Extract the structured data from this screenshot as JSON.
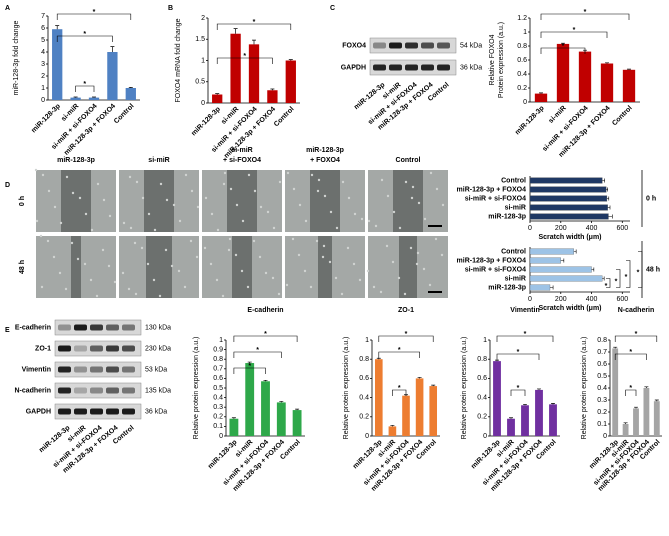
{
  "panels": [
    "A",
    "B",
    "C",
    "D",
    "E"
  ],
  "blots": {
    "C": {
      "rows": [
        {
          "label": "FOXO4",
          "size": "54 kDa"
        },
        {
          "label": "GAPDH",
          "size": "36 kDa"
        }
      ],
      "lanes": [
        "miR-128-3p",
        "si-miR",
        "si-miR + si-FOXO4",
        "miR-128-3p + FOXO4",
        "Control"
      ]
    },
    "E": {
      "rows": [
        {
          "label": "E-cadherin",
          "size": "130 kDa"
        },
        {
          "label": "ZO-1",
          "size": "230 kDa"
        },
        {
          "label": "Vimentin",
          "size": "53 kDa"
        },
        {
          "label": "N-cadherin",
          "size": "135 kDa"
        },
        {
          "label": "GAPDH",
          "size": "36 kDa"
        }
      ],
      "lanes": [
        "miR-128-3p",
        "si-miR",
        "si-miR + si-FOXO4",
        "miR-128-3p + FOXO4",
        "Control"
      ]
    }
  },
  "micrographs": {
    "columns": [
      [
        "miR-128-3p"
      ],
      [
        "si-miR"
      ],
      [
        "si-miR",
        "+ si-FOXO4"
      ],
      [
        "miR-128-3p",
        "+ FOXO4"
      ],
      [
        "Control"
      ]
    ],
    "rows": [
      "0 h",
      "48 h"
    ]
  },
  "chart_data": [
    {
      "type": "bar",
      "ylabel": "miR-128-3p fold change",
      "color": "#4f81c3",
      "categories": [
        "miR-128-3p",
        "si-miR",
        "si-miR + si-FOXO4",
        "miR-128-3p + FOXO4",
        "Control"
      ],
      "values": [
        5.9,
        0.2,
        0.2,
        4.0,
        1.0
      ],
      "errors": [
        0.3,
        0.05,
        0.05,
        0.45,
        0.05
      ],
      "ylim": [
        0,
        7
      ],
      "yticks": [
        0,
        1,
        2,
        3,
        4,
        5,
        6,
        7
      ],
      "annotations": [
        "*",
        "*",
        "*"
      ]
    },
    {
      "type": "bar",
      "ylabel": "FOXO4 mRNA fold change",
      "color": "#c00000",
      "categories": [
        "miR-128-3p",
        "si-miR",
        "si-miR + si-FOXO4",
        "miR-128-3p + FOXO4",
        "Control"
      ],
      "values": [
        0.2,
        1.63,
        1.38,
        0.3,
        1.0
      ],
      "errors": [
        0.02,
        0.12,
        0.1,
        0.03,
        0.02
      ],
      "ylim": [
        0,
        2
      ],
      "yticks": [
        0,
        0.5,
        1,
        1.5,
        2
      ],
      "annotations": [
        "*",
        "*"
      ]
    },
    {
      "type": "bar",
      "ylabel": [
        "Relative FOXO4",
        "Protein expression (a.u.)"
      ],
      "color": "#c00000",
      "categories": [
        "miR-128-3p",
        "si-miR",
        "si-miR + si-FOXO4",
        "miR-128-3p + FOXO4",
        "Control"
      ],
      "values": [
        0.12,
        0.83,
        0.72,
        0.55,
        0.46
      ],
      "errors": [
        0.01,
        0.01,
        0.02,
        0.01,
        0.01
      ],
      "ylim": [
        0,
        1.2
      ],
      "yticks": [
        0,
        0.2,
        0.4,
        0.6,
        0.8,
        1,
        1.2
      ],
      "annotations": [
        "*",
        "*",
        "*"
      ]
    },
    {
      "type": "hbar",
      "xlabel": "Scratch width (μm)",
      "color": "#1f3864",
      "side_label": "0 h",
      "categories": [
        "Control",
        "miR-128-3p + FOXO4",
        "si-miR + si-FOXO4",
        "si-miR",
        "miR-128-3p"
      ],
      "values": [
        470,
        495,
        500,
        505,
        510
      ],
      "errors": [
        15,
        10,
        12,
        15,
        25
      ],
      "xlim": [
        0,
        650
      ],
      "xticks": [
        0,
        200,
        400,
        600
      ],
      "annotations": []
    },
    {
      "type": "hbar",
      "xlabel": "Scratch width (μm)",
      "color": "#9dc3e6",
      "side_label": "48 h",
      "categories": [
        "Control",
        "miR-128-3p + FOXO4",
        "si-miR + si-FOXO4",
        "si-miR",
        "miR-128-3p"
      ],
      "values": [
        285,
        200,
        400,
        470,
        130
      ],
      "errors": [
        15,
        20,
        15,
        12,
        20
      ],
      "xlim": [
        0,
        650
      ],
      "xticks": [
        0,
        200,
        400,
        600
      ],
      "annotations": [
        "*",
        "*",
        "*",
        "*"
      ]
    },
    {
      "type": "bar",
      "title": "E-cadherin",
      "ylabel": "Relative protein expression (a.u.)",
      "color": "#2ea84a",
      "categories": [
        "miR-128-3p",
        "si-miR",
        "si-miR + si-FOXO4",
        "miR-128-3p + FOXO4",
        "Control"
      ],
      "values": [
        0.18,
        0.76,
        0.57,
        0.35,
        0.27
      ],
      "errors": [
        0.01,
        0.01,
        0.01,
        0.01,
        0.01
      ],
      "ylim": [
        0,
        1
      ],
      "yticks": [
        0,
        0.1,
        0.2,
        0.3,
        0.4,
        0.5,
        0.6,
        0.7,
        0.8,
        0.9,
        1
      ],
      "annotations": [
        "*",
        "*",
        "*"
      ]
    },
    {
      "type": "bar",
      "title": "ZO-1",
      "ylabel": "Relative protein expression (a.u.)",
      "color": "#ed7d31",
      "categories": [
        "miR-128-3p",
        "si-miR",
        "si-miR + si-FOXO4",
        "miR-128-3p + FOXO4",
        "Control"
      ],
      "values": [
        0.8,
        0.1,
        0.42,
        0.6,
        0.52
      ],
      "errors": [
        0.01,
        0.01,
        0.01,
        0.01,
        0.01
      ],
      "ylim": [
        0,
        1
      ],
      "yticks": [
        0,
        0.2,
        0.4,
        0.6,
        0.8,
        1
      ],
      "annotations": [
        "*",
        "*",
        "*"
      ]
    },
    {
      "type": "bar",
      "title": "Vimentin",
      "ylabel": "Relative protein expression (a.u.)",
      "color": "#7030a0",
      "categories": [
        "miR-128-3p",
        "si-miR",
        "si-miR + si-FOXO4",
        "miR-128-3p + FOXO4",
        "Control"
      ],
      "values": [
        0.78,
        0.18,
        0.32,
        0.48,
        0.33
      ],
      "errors": [
        0.01,
        0.01,
        0.01,
        0.01,
        0.01
      ],
      "ylim": [
        0,
        1
      ],
      "yticks": [
        0,
        0.2,
        0.4,
        0.6,
        0.8,
        1
      ],
      "annotations": [
        "*",
        "*",
        "*"
      ]
    },
    {
      "type": "bar",
      "title": "N-cadherin",
      "ylabel": "Relative protein expression (a.u.)",
      "color": "#a5a5a5",
      "categories": [
        "miR-128-3p",
        "si-miR",
        "si-miR + si-FOXO4",
        "miR-128-3p + FOXO4",
        "Control"
      ],
      "values": [
        0.73,
        0.1,
        0.23,
        0.4,
        0.29
      ],
      "errors": [
        0.01,
        0.01,
        0.01,
        0.01,
        0.01
      ],
      "ylim": [
        0,
        0.8
      ],
      "yticks": [
        0,
        0.1,
        0.2,
        0.3,
        0.4,
        0.5,
        0.6,
        0.7,
        0.8
      ],
      "annotations": [
        "*",
        "*",
        "*"
      ]
    }
  ]
}
